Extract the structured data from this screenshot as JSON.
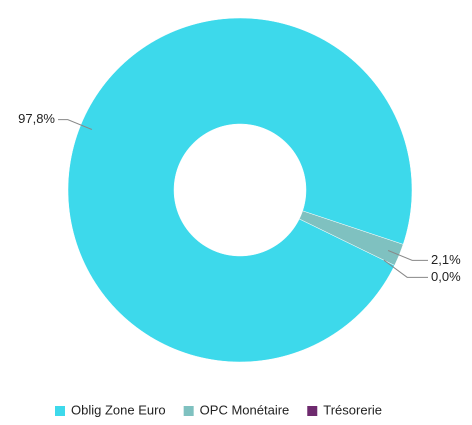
{
  "chart_data": {
    "type": "pie",
    "donut": true,
    "categories": [
      "Oblig Zone Euro",
      "OPC Monétaire",
      "Trésorerie"
    ],
    "values": [
      97.8,
      2.1,
      0.0
    ],
    "value_labels": [
      "97,8%",
      "2,1%",
      "0,0%"
    ],
    "colors": [
      "#3dd9eb",
      "#7fc1c0",
      "#6e2a6e"
    ],
    "legend": "bottom"
  }
}
